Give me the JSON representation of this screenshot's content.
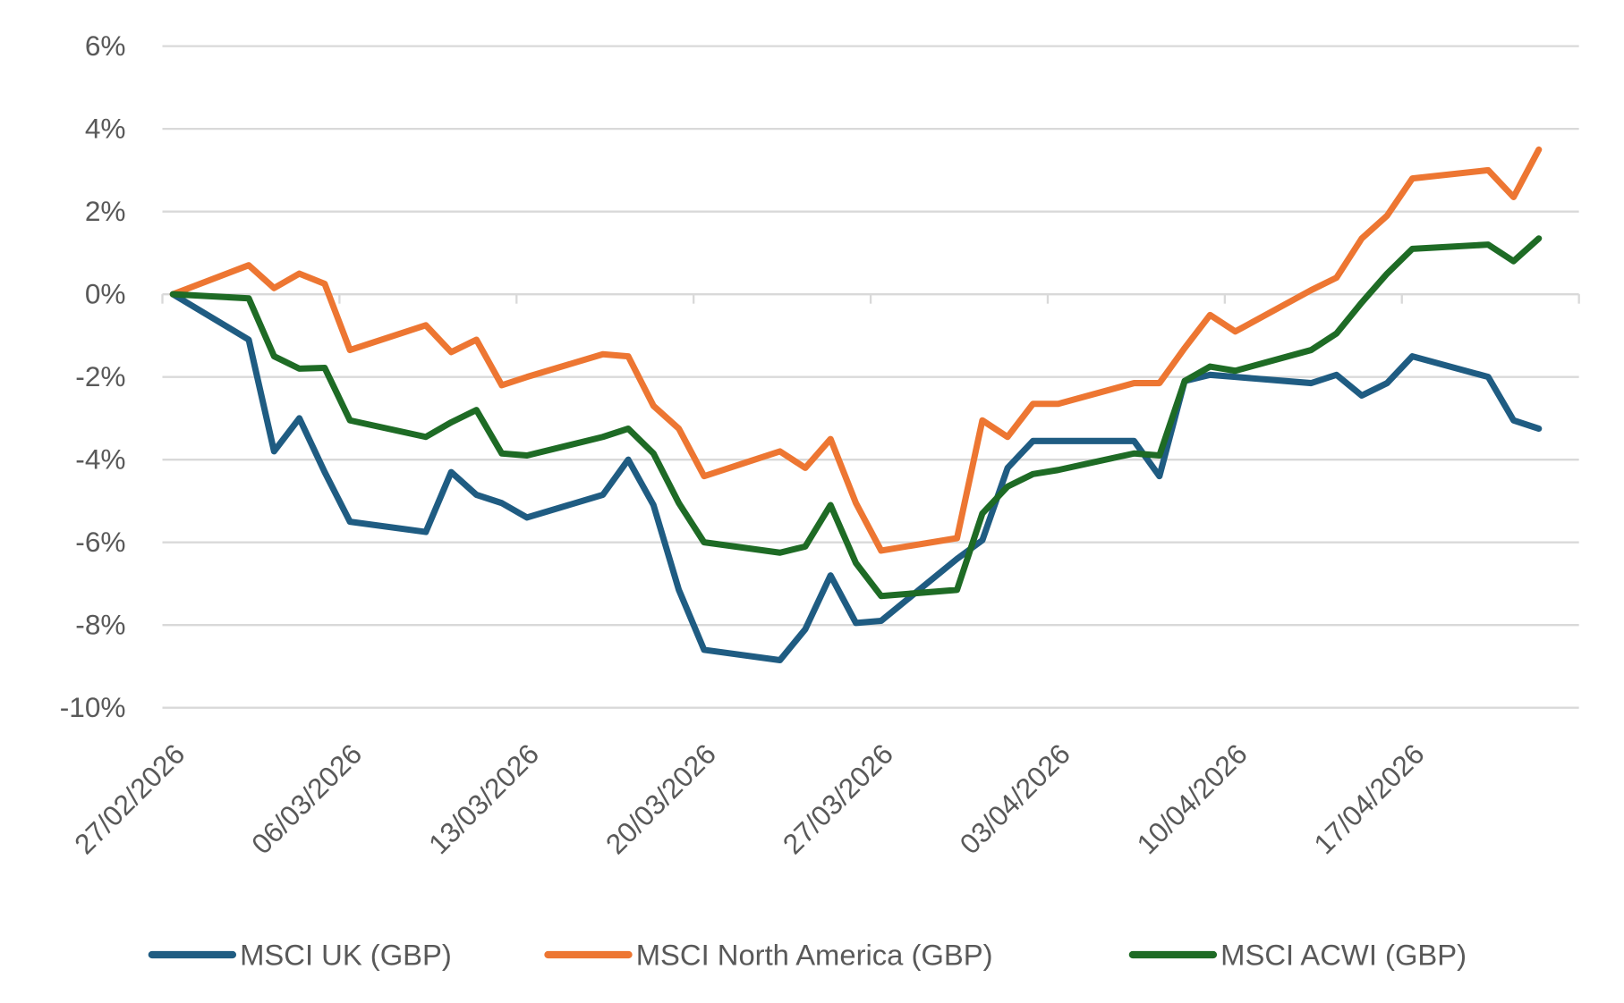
{
  "chart_data": {
    "type": "line",
    "title": "",
    "xlabel": "",
    "ylabel": "",
    "ylim": [
      -10,
      6
    ],
    "y_ticks": [
      "6%",
      "4%",
      "2%",
      "0%",
      "-2%",
      "-4%",
      "-6%",
      "-8%",
      "-10%"
    ],
    "y_tick_values": [
      6,
      4,
      2,
      0,
      -2,
      -4,
      -6,
      -8,
      -10
    ],
    "x_tick_labels": [
      "27/02/2026",
      "06/03/2026",
      "13/03/2026",
      "20/03/2026",
      "27/03/2026",
      "03/04/2026",
      "10/04/2026",
      "17/04/2026"
    ],
    "grid": "horizontal",
    "legend_position": "bottom",
    "x": [
      "2026-02-27",
      "2026-03-02",
      "2026-03-03",
      "2026-03-04",
      "2026-03-05",
      "2026-03-06",
      "2026-03-09",
      "2026-03-10",
      "2026-03-11",
      "2026-03-12",
      "2026-03-13",
      "2026-03-16",
      "2026-03-17",
      "2026-03-18",
      "2026-03-19",
      "2026-03-20",
      "2026-03-23",
      "2026-03-24",
      "2026-03-25",
      "2026-03-26",
      "2026-03-27",
      "2026-03-30",
      "2026-03-31",
      "2026-04-01",
      "2026-04-02",
      "2026-04-03",
      "2026-04-06",
      "2026-04-07",
      "2026-04-08",
      "2026-04-09",
      "2026-04-10",
      "2026-04-13",
      "2026-04-14",
      "2026-04-15",
      "2026-04-16",
      "2026-04-17",
      "2026-04-20",
      "2026-04-21",
      "2026-04-22"
    ],
    "series": [
      {
        "name": "MSCI UK (GBP)",
        "color": "#1f5c82",
        "values": [
          0,
          -1.1,
          -3.8,
          -3.0,
          -4.3,
          -5.5,
          -5.75,
          -4.3,
          -4.85,
          -5.05,
          -5.4,
          -4.85,
          -4.0,
          -5.1,
          -7.15,
          -8.6,
          -8.85,
          -8.1,
          -6.8,
          -7.95,
          -7.9,
          -6.4,
          -5.95,
          -4.2,
          -3.55,
          -3.55,
          -3.55,
          -4.4,
          -2.1,
          -1.95,
          -2.0,
          -2.15,
          -1.95,
          -2.45,
          -2.15,
          -1.5,
          -2.0,
          -3.05,
          -3.25
        ]
      },
      {
        "name": "MSCI North America (GBP)",
        "color": "#ed7632",
        "values": [
          0,
          0.7,
          0.15,
          0.5,
          0.25,
          -1.35,
          -0.75,
          -1.4,
          -1.1,
          -2.2,
          -2.0,
          -1.45,
          -1.5,
          -2.7,
          -3.25,
          -4.4,
          -3.8,
          -4.2,
          -3.5,
          -5.05,
          -6.2,
          -5.9,
          -3.05,
          -3.45,
          -2.65,
          -2.65,
          -2.15,
          -2.15,
          -1.3,
          -0.5,
          -0.9,
          0.1,
          0.4,
          1.35,
          1.9,
          2.8,
          3.0,
          2.35,
          3.5
        ]
      },
      {
        "name": "MSCI ACWI (GBP)",
        "color": "#1e6b25",
        "values": [
          0,
          -0.1,
          -1.5,
          -1.8,
          -1.78,
          -3.05,
          -3.45,
          -3.1,
          -2.8,
          -3.85,
          -3.9,
          -3.45,
          -3.25,
          -3.85,
          -5.05,
          -6.0,
          -6.25,
          -6.1,
          -5.1,
          -6.5,
          -7.3,
          -7.15,
          -5.3,
          -4.65,
          -4.35,
          -4.25,
          -3.85,
          -3.9,
          -2.1,
          -1.75,
          -1.85,
          -1.35,
          -0.95,
          -0.2,
          0.5,
          1.1,
          1.2,
          0.8,
          1.35
        ]
      }
    ]
  }
}
